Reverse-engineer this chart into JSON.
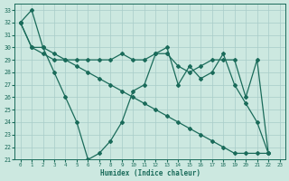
{
  "xlabel": "Humidex (Indice chaleur)",
  "xlim": [
    -0.5,
    23.5
  ],
  "ylim": [
    21,
    33.5
  ],
  "yticks": [
    21,
    22,
    23,
    24,
    25,
    26,
    27,
    28,
    29,
    30,
    31,
    32,
    33
  ],
  "xticks": [
    0,
    1,
    2,
    3,
    4,
    5,
    6,
    7,
    8,
    9,
    10,
    11,
    12,
    13,
    14,
    15,
    16,
    17,
    18,
    19,
    20,
    21,
    22,
    23
  ],
  "background_color": "#cce8e0",
  "grid_color": "#a8ccc8",
  "line_color": "#1a6b5a",
  "line1": [
    32,
    33,
    30,
    28,
    26,
    24,
    21,
    21.5,
    22.5,
    24,
    26.5,
    27,
    29.5,
    30,
    27,
    28.5,
    27.5,
    28,
    29.5,
    27,
    25.5,
    24,
    21.5
  ],
  "line2": [
    32,
    30,
    30,
    29.5,
    29,
    29,
    29,
    29,
    29,
    29.5,
    29,
    29,
    29.5,
    29.5,
    28.5,
    28,
    28.5,
    29,
    29,
    29,
    26,
    29,
    21.5
  ],
  "line3": [
    32,
    30,
    29.5,
    29,
    29,
    28.5,
    28,
    27.5,
    27,
    26.5,
    26,
    25.5,
    25,
    24.5,
    24,
    23.5,
    23,
    22.5,
    22,
    21.5,
    21.5,
    21.5,
    21.5
  ]
}
